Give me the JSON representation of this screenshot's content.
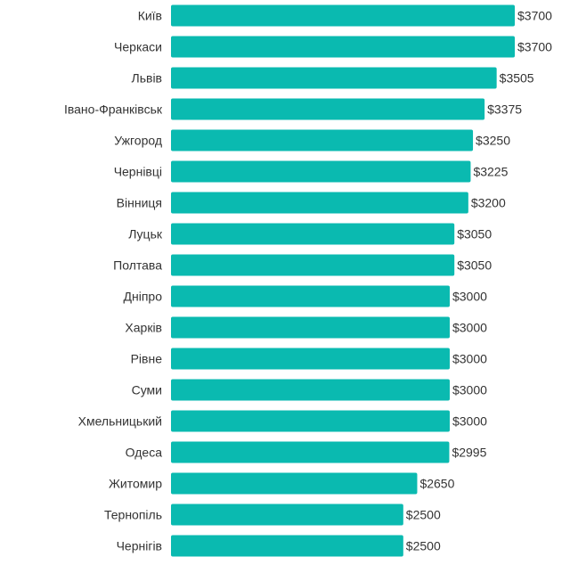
{
  "chart_data": {
    "type": "bar",
    "orientation": "horizontal",
    "categories": [
      "Київ",
      "Черкаси",
      "Львів",
      "Івано-Франківськ",
      "Ужгород",
      "Чернівці",
      "Вінниця",
      "Луцьк",
      "Полтава",
      "Дніпро",
      "Харків",
      "Рівне",
      "Суми",
      "Хмельницький",
      "Одеса",
      "Житомир",
      "Тернопіль",
      "Чернігів"
    ],
    "values": [
      3700,
      3700,
      3505,
      3375,
      3250,
      3225,
      3200,
      3050,
      3050,
      3000,
      3000,
      3000,
      3000,
      3000,
      2995,
      2650,
      2500,
      2500
    ],
    "value_labels": [
      "$3700",
      "$3700",
      "$3505",
      "$3375",
      "$3250",
      "$3225",
      "$3200",
      "$3050",
      "$3050",
      "$3000",
      "$3000",
      "$3000",
      "$3000",
      "$3000",
      "$2995",
      "$2650",
      "$2500",
      "$2500"
    ],
    "title": "",
    "xlabel": "",
    "ylabel": "",
    "xlim": [
      0,
      3700
    ],
    "grid": false,
    "legend": "none",
    "bar_color": "#0ABAB0"
  }
}
